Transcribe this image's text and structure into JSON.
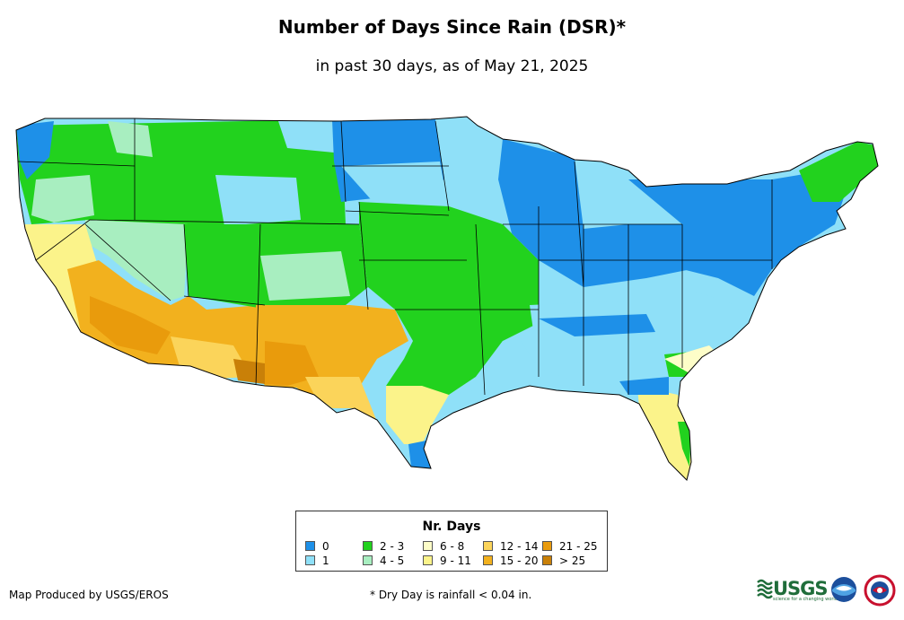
{
  "title": "Number of Days Since Rain (DSR)*",
  "subtitle": "in past 30 days, as of May 21, 2025",
  "legend": {
    "title": "Nr. Days",
    "items": [
      {
        "label": "0",
        "color": "#1e90e8"
      },
      {
        "label": "1",
        "color": "#8fe0f8"
      },
      {
        "label": "2 - 3",
        "color": "#22d21e"
      },
      {
        "label": "4 - 5",
        "color": "#a8eec0"
      },
      {
        "label": "6 - 8",
        "color": "#fdfdc8"
      },
      {
        "label": "9 - 11",
        "color": "#fbf38a"
      },
      {
        "label": "12 - 14",
        "color": "#fbd45a"
      },
      {
        "label": "15 - 20",
        "color": "#f2b11e"
      },
      {
        "label": "21 - 25",
        "color": "#e99b0c"
      },
      {
        "label": "> 25",
        "color": "#c98008"
      }
    ]
  },
  "credit": "Map Produced by USGS/EROS",
  "footnote": "* Dry Day is rainfall < 0.04 in.",
  "logos": {
    "usgs": "USGS",
    "usgs_tagline": "science for a changing world",
    "noaa": "noaa",
    "nws": "NWS"
  }
}
